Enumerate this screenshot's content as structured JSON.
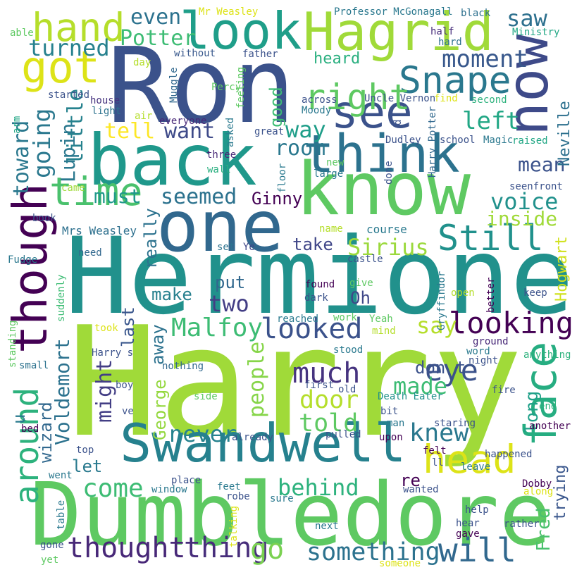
{
  "cloud": {
    "words": [
      {
        "text": "Harry",
        "color": "#a0da39"
      },
      {
        "text": "Hermione",
        "color": "#21918c"
      },
      {
        "text": "Ron",
        "color": "#3b528b"
      },
      {
        "text": "Dumbledore",
        "color": "#5ec962"
      },
      {
        "text": "know",
        "color": "#5ec962"
      },
      {
        "text": "back",
        "color": "#1f988b"
      },
      {
        "text": "one",
        "color": "#31688e"
      },
      {
        "text": "now",
        "color": "#3e4a89"
      },
      {
        "text": "Hagrid",
        "color": "#a0da39"
      },
      {
        "text": "Swandwell",
        "color": "#26818e"
      },
      {
        "text": "though",
        "color": "#440154"
      },
      {
        "text": "think",
        "color": "#2c728e"
      },
      {
        "text": "look",
        "color": "#1f9e89"
      },
      {
        "text": "see",
        "color": "#3b528b"
      },
      {
        "text": "face",
        "color": "#26ad81"
      },
      {
        "text": "got",
        "color": "#dde318"
      },
      {
        "text": "hand",
        "color": "#b5de2b"
      },
      {
        "text": "time",
        "color": "#4ac16d"
      },
      {
        "text": "head",
        "color": "#dde318"
      },
      {
        "text": "Snape",
        "color": "#2a788e"
      },
      {
        "text": "right",
        "color": "#5ec962"
      },
      {
        "text": "Still",
        "color": "#21918c"
      },
      {
        "text": "around",
        "color": "#2db27d"
      },
      {
        "text": "looking",
        "color": "#440154"
      },
      {
        "text": "looked",
        "color": "#3b528b"
      },
      {
        "text": "thought",
        "color": "#482878"
      },
      {
        "text": "thing",
        "color": "#472d7b"
      },
      {
        "text": "will",
        "color": "#31688e"
      },
      {
        "text": "something",
        "color": "#2c728e"
      },
      {
        "text": "go",
        "color": "#7ad151"
      },
      {
        "text": "Malfoy",
        "color": "#3dbc74"
      },
      {
        "text": "eye",
        "color": "#3b528b"
      },
      {
        "text": "door",
        "color": "#b5de2b"
      },
      {
        "text": "told",
        "color": "#5ec962"
      },
      {
        "text": "much",
        "color": "#46337f"
      },
      {
        "text": "come",
        "color": "#3dbc74"
      },
      {
        "text": "behind",
        "color": "#2db27d"
      },
      {
        "text": "made",
        "color": "#3dbc74"
      },
      {
        "text": "knew",
        "color": "#2a788e"
      },
      {
        "text": "never",
        "color": "#26828e"
      },
      {
        "text": "two",
        "color": "#433e85"
      },
      {
        "text": "say",
        "color": "#b5de2b"
      },
      {
        "text": "Sirius",
        "color": "#9bd93c"
      },
      {
        "text": "voice",
        "color": "#21918c"
      },
      {
        "text": "room",
        "color": "#2a788e"
      },
      {
        "text": "way",
        "color": "#1f9e89"
      },
      {
        "text": "want",
        "color": "#3e4a89"
      },
      {
        "text": "seemed",
        "color": "#2c728e"
      },
      {
        "text": "going",
        "color": "#2a788e"
      },
      {
        "text": "left",
        "color": "#22a785"
      },
      {
        "text": "moment",
        "color": "#38588c"
      },
      {
        "text": "saw",
        "color": "#2d708e"
      },
      {
        "text": "turned",
        "color": "#26818e"
      },
      {
        "text": "even",
        "color": "#2c728e"
      },
      {
        "text": "Potter",
        "color": "#3dbc74"
      },
      {
        "text": "tell",
        "color": "#fde725"
      },
      {
        "text": "little",
        "color": "#26828e"
      },
      {
        "text": "toward",
        "color": "#2a788e"
      },
      {
        "text": "Lupin",
        "color": "#2a788e"
      },
      {
        "text": "must",
        "color": "#1f988b"
      },
      {
        "text": "Ginny",
        "color": "#440154"
      },
      {
        "text": "mean",
        "color": "#3b528b"
      },
      {
        "text": "inside",
        "color": "#a0da39"
      },
      {
        "text": "people",
        "color": "#86d549"
      },
      {
        "text": "might",
        "color": "#433e85"
      },
      {
        "text": "Voldemort",
        "color": "#2c728e"
      },
      {
        "text": "George",
        "color": "#95d840"
      },
      {
        "text": "away",
        "color": "#2c728e"
      },
      {
        "text": "Fred",
        "color": "#4ac16d"
      },
      {
        "text": "trying",
        "color": "#39568c"
      },
      {
        "text": "long",
        "color": "#1fa088"
      },
      {
        "text": "Hogwart",
        "color": "#d0e11c"
      },
      {
        "text": "Neville",
        "color": "#2d708e"
      },
      {
        "text": "take",
        "color": "#404688"
      },
      {
        "text": "put",
        "color": "#31688e"
      },
      {
        "text": "make",
        "color": "#27808e"
      },
      {
        "text": "Oh",
        "color": "#3f4788"
      },
      {
        "text": "don t",
        "color": "#3b528b"
      },
      {
        "text": "let",
        "color": "#29798e"
      },
      {
        "text": "re",
        "color": "#440154"
      },
      {
        "text": "wizard",
        "color": "#31688e"
      },
      {
        "text": "u",
        "color": "#29798e"
      },
      {
        "text": "last",
        "color": "#39568c"
      },
      {
        "text": "really",
        "color": "#2c728e"
      },
      {
        "text": "good",
        "color": "#3dbc74"
      },
      {
        "text": "heard",
        "color": "#29af7f"
      },
      {
        "text": "Mrs Weasley",
        "color": "#2d708e"
      },
      {
        "text": "course",
        "color": "#29798e"
      },
      {
        "text": "Ye",
        "color": "#3f4788"
      },
      {
        "text": "set",
        "color": "#2c728e"
      },
      {
        "text": "castle",
        "color": "#3b528b"
      },
      {
        "text": "name",
        "color": "#b5de2b"
      },
      {
        "text": "Professor McGonagall",
        "color": "#2a788e"
      },
      {
        "text": "Mr Weasley",
        "color": "#dde318"
      },
      {
        "text": "black",
        "color": "#2d708e"
      },
      {
        "text": "half",
        "color": "#472d7b"
      },
      {
        "text": "Ministry",
        "color": "#22a785"
      },
      {
        "text": "hard",
        "color": "#2d708e"
      },
      {
        "text": "without",
        "color": "#38588c"
      },
      {
        "text": "father",
        "color": "#3b528b"
      },
      {
        "text": "day",
        "color": "#b5de2b"
      },
      {
        "text": "able",
        "color": "#5ec962"
      },
      {
        "text": "Percy",
        "color": "#5ec962"
      },
      {
        "text": "Muggle",
        "color": "#31688e"
      },
      {
        "text": "feeling",
        "color": "#5ec962"
      },
      {
        "text": "across",
        "color": "#3b528b"
      },
      {
        "text": "Uncle Vernon",
        "color": "#3b528b"
      },
      {
        "text": "find",
        "color": "#dde318"
      },
      {
        "text": "second",
        "color": "#2db27d"
      },
      {
        "text": "Moody",
        "color": "#2a788e"
      },
      {
        "text": "Harry Potter",
        "color": "#31688e"
      },
      {
        "text": "started",
        "color": "#3b528b"
      },
      {
        "text": "house",
        "color": "#46337f"
      },
      {
        "text": "light",
        "color": "#2c728e"
      },
      {
        "text": "air",
        "color": "#b5de2b"
      },
      {
        "text": "everyone",
        "color": "#482878"
      },
      {
        "text": "arm",
        "color": "#22a785"
      },
      {
        "text": "asked",
        "color": "#29798e"
      },
      {
        "text": "great",
        "color": "#3b528b"
      },
      {
        "text": "d",
        "color": "#3b528b"
      },
      {
        "text": "Dudley",
        "color": "#3b528b"
      },
      {
        "text": "school",
        "color": "#3b528b"
      },
      {
        "text": "Magic",
        "color": "#2a788e"
      },
      {
        "text": "raised",
        "color": "#22a785"
      },
      {
        "text": "three",
        "color": "#482878"
      },
      {
        "text": "wall",
        "color": "#29af7f"
      },
      {
        "text": "floor",
        "color": "#29798e"
      },
      {
        "text": "new",
        "color": "#5ec962"
      },
      {
        "text": "large",
        "color": "#2a788e"
      },
      {
        "text": "done",
        "color": "#3b528b"
      },
      {
        "text": "seenfront",
        "color": "#3b528b"
      },
      {
        "text": "came",
        "color": "#a0da39"
      },
      {
        "text": "book",
        "color": "#3b528b"
      },
      {
        "text": "need",
        "color": "#31688e"
      },
      {
        "text": "Fudge",
        "color": "#2a788e"
      },
      {
        "text": "suddenly",
        "color": "#3dbc74"
      },
      {
        "text": "found",
        "color": "#440154"
      },
      {
        "text": "dark",
        "color": "#3b528b"
      },
      {
        "text": "give",
        "color": "#5ec962"
      },
      {
        "text": "Gryffindor",
        "color": "#2a788e"
      },
      {
        "text": "better",
        "color": "#440154"
      },
      {
        "text": "open",
        "color": "#b5de2b"
      },
      {
        "text": "keep",
        "color": "#3b528b"
      },
      {
        "text": "reached",
        "color": "#29798e"
      },
      {
        "text": "work",
        "color": "#5ec962"
      },
      {
        "text": "Yeah",
        "color": "#5ec962"
      },
      {
        "text": "mind",
        "color": "#b5de2b"
      },
      {
        "text": "took",
        "color": "#dde318"
      },
      {
        "text": "standing",
        "color": "#5ec962"
      },
      {
        "text": "Harry s",
        "color": "#3b528b"
      },
      {
        "text": "small",
        "color": "#2c728e"
      },
      {
        "text": "nothing",
        "color": "#31688e"
      },
      {
        "text": "stood",
        "color": "#29798e"
      },
      {
        "text": "word",
        "color": "#29798e"
      },
      {
        "text": "night",
        "color": "#3b528b"
      },
      {
        "text": "ground",
        "color": "#482878"
      },
      {
        "text": "anything",
        "color": "#2db27d"
      },
      {
        "text": "boy",
        "color": "#3b528b"
      },
      {
        "text": "side",
        "color": "#5ec962"
      },
      {
        "text": "first",
        "color": "#3b528b"
      },
      {
        "text": "old",
        "color": "#3b528b"
      },
      {
        "text": "Death Eater",
        "color": "#21918c"
      },
      {
        "text": "fire",
        "color": "#3b528b"
      },
      {
        "text": "end",
        "color": "#2db27d"
      },
      {
        "text": "ve",
        "color": "#3b528b"
      },
      {
        "text": "bit",
        "color": "#3b528b"
      },
      {
        "text": "man",
        "color": "#2a788e"
      },
      {
        "text": "staring",
        "color": "#3b528b"
      },
      {
        "text": "another",
        "color": "#440154"
      },
      {
        "text": "bed",
        "color": "#440154"
      },
      {
        "text": "already",
        "color": "#3b528b"
      },
      {
        "text": "pulled",
        "color": "#3b528b"
      },
      {
        "text": "upon",
        "color": "#440154"
      },
      {
        "text": "top",
        "color": "#3b528b"
      },
      {
        "text": "felt",
        "color": "#440154"
      },
      {
        "text": "ll",
        "color": "#3b528b"
      },
      {
        "text": "happened",
        "color": "#3b528b"
      },
      {
        "text": "went",
        "color": "#2a788e"
      },
      {
        "text": "place",
        "color": "#3b528b"
      },
      {
        "text": "leave",
        "color": "#29798e"
      },
      {
        "text": "Dobby",
        "color": "#440154"
      },
      {
        "text": "window",
        "color": "#2a788e"
      },
      {
        "text": "feet",
        "color": "#29798e"
      },
      {
        "text": "wanted",
        "color": "#3b528b"
      },
      {
        "text": "along",
        "color": "#dde318"
      },
      {
        "text": "table",
        "color": "#2a788e"
      },
      {
        "text": "robe",
        "color": "#3b528b"
      },
      {
        "text": "sure",
        "color": "#29798e"
      },
      {
        "text": "help",
        "color": "#3b528b"
      },
      {
        "text": "talking",
        "color": "#dde318"
      },
      {
        "text": "next",
        "color": "#2a788e"
      },
      {
        "text": "hear",
        "color": "#3b528b"
      },
      {
        "text": "rather",
        "color": "#3b528b"
      },
      {
        "text": "gave",
        "color": "#440154"
      },
      {
        "text": "gone",
        "color": "#3b528b"
      },
      {
        "text": "yet",
        "color": "#5ec962"
      },
      {
        "text": "someone",
        "color": "#dde318"
      }
    ]
  }
}
